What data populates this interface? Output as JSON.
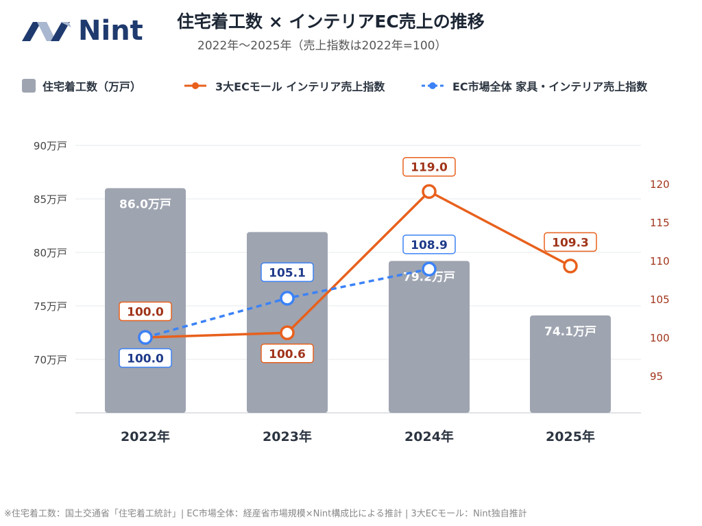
{
  "brand": {
    "name": "Nint",
    "colors": {
      "logo_dark": "#1f3a6e",
      "logo_light": "#a9b7d0"
    }
  },
  "title": "住宅着工数 × インテリアEC売上の推移",
  "subtitle": "2022年〜2025年（売上指数は2022年=100）",
  "legend": [
    {
      "label": "住宅着工数（万戸）",
      "marker": "bar",
      "color": "#9ea4b0"
    },
    {
      "label": "3大ECモール インテリア売上指数",
      "marker": "solid-line",
      "color": "#e8601c"
    },
    {
      "label": "EC市場全体 家具・インテリア売上指数",
      "marker": "dashed-line",
      "color": "#3b82f6"
    }
  ],
  "chart_data": {
    "type": "bar+line",
    "categories": [
      "2022年",
      "2023年",
      "2024年",
      "2025年"
    ],
    "bars": {
      "name": "住宅着工数（万戸）",
      "values": [
        86.0,
        81.9,
        79.2,
        74.1
      ],
      "labels": [
        "86.0万戸",
        "",
        "79.2万戸",
        "74.1万戸"
      ]
    },
    "lines": [
      {
        "name": "3大ECモール インテリア売上指数",
        "values": [
          100.0,
          100.6,
          119.0,
          109.3
        ],
        "labels": [
          "100.0",
          "100.6",
          "119.0",
          "109.3"
        ],
        "color": "#e8601c",
        "style": "solid"
      },
      {
        "name": "EC市場全体 家具・インテリア売上指数",
        "values": [
          100.0,
          105.1,
          108.9,
          null
        ],
        "labels": [
          "100.0",
          "105.1",
          "108.9",
          ""
        ],
        "color": "#3b82f6",
        "style": "dashed"
      }
    ],
    "left_axis": {
      "ticks": [
        "70万戸",
        "75万戸",
        "80万戸",
        "85万戸",
        "90万戸"
      ],
      "tick_values": [
        70,
        75,
        80,
        85,
        90
      ],
      "range": [
        65,
        95
      ]
    },
    "right_axis": {
      "ticks": [
        "95",
        "100",
        "105",
        "110",
        "115",
        "120"
      ],
      "tick_values": [
        95,
        100,
        105,
        110,
        115,
        120
      ],
      "range": [
        90,
        125
      ]
    },
    "grid": true,
    "colors": {
      "bar": "#9ea4b0",
      "left_tick": "#444444",
      "right_tick": "#a0341a"
    }
  },
  "footnote": "※住宅着工数：国土交通省「住宅着工統計」| EC市場全体：経産省市場規模×Nint構成比による推計 | 3大ECモール：Nint独自推計"
}
